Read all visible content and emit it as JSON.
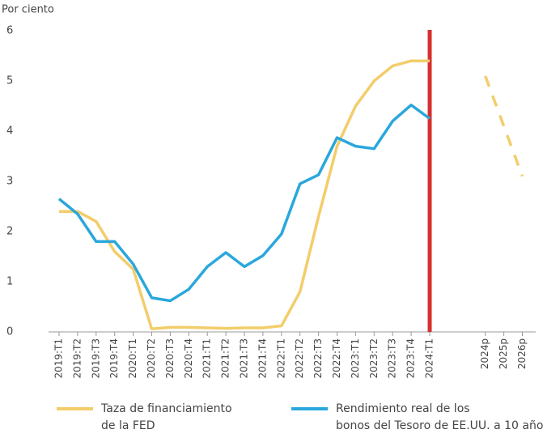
{
  "chart_data": {
    "type": "line",
    "y_axis_label": "Por ciento",
    "categories": [
      "2019:T1",
      "2019:T2",
      "2019:T3",
      "2019:T4",
      "2020:T1",
      "2020:T2",
      "2020:T3",
      "2020:T4",
      "2021:T1",
      "2021:T2",
      "2021:T3",
      "2021:T4",
      "2022:T1",
      "2022:T2",
      "2022:T3",
      "2022:T4",
      "2023:T1",
      "2023:T2",
      "2023:T3",
      "2023:T4",
      "2024:T1",
      null,
      null,
      "2024p",
      "2025p",
      "2026p"
    ],
    "series": [
      {
        "name": "Taza de financiamiento de la FED",
        "color": "#f3cd6b",
        "values": [
          2.4,
          2.4,
          2.2,
          1.6,
          1.25,
          0.06,
          0.09,
          0.09,
          0.08,
          0.07,
          0.08,
          0.08,
          0.12,
          0.8,
          2.3,
          3.7,
          4.5,
          5.0,
          5.3,
          5.4,
          5.4,
          null,
          null,
          5.1,
          4.1,
          3.1
        ]
      },
      {
        "name": "Rendimiento real de los bonos del Tesoro de EE.UU. a 10 años",
        "color": "#2aa7dc",
        "values": [
          2.65,
          2.35,
          1.8,
          1.8,
          1.35,
          0.68,
          0.62,
          0.85,
          1.3,
          1.58,
          1.3,
          1.52,
          1.95,
          2.95,
          3.13,
          3.87,
          3.7,
          3.65,
          4.2,
          4.52,
          4.25,
          null,
          null,
          null,
          null,
          null
        ]
      }
    ],
    "vline_at": "2024:T1",
    "vline_color": "#d62f2f",
    "ylim": [
      0,
      6
    ],
    "yticks": [
      0,
      1,
      2,
      3,
      4,
      5,
      6
    ],
    "grid": false
  }
}
